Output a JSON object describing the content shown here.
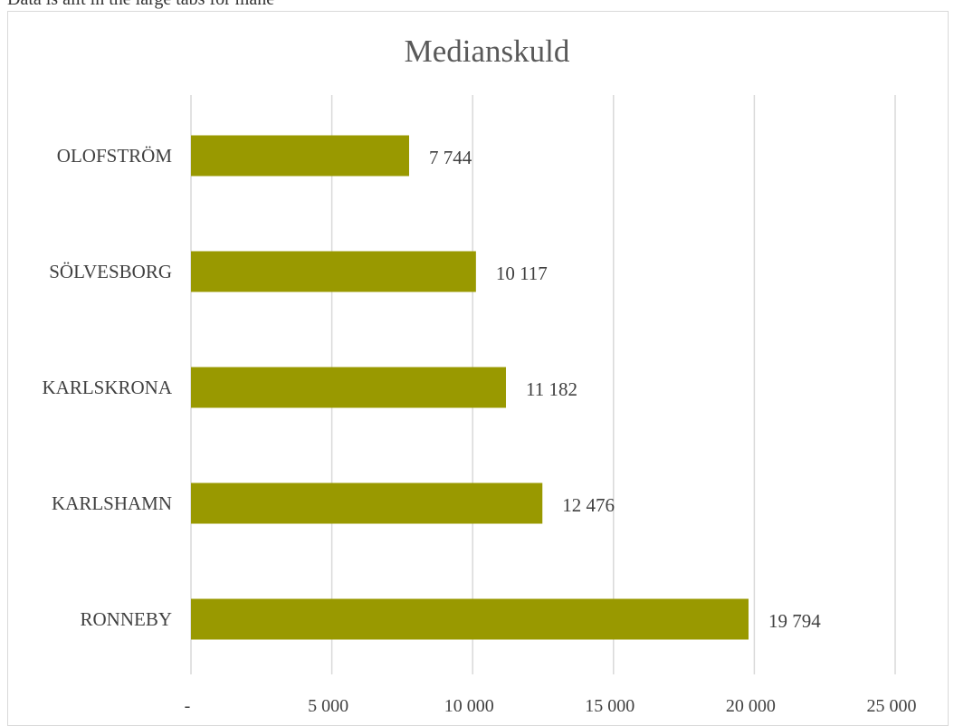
{
  "header_text": "Data is allt in the large tabs for mane",
  "chart_data": {
    "type": "bar",
    "orientation": "horizontal",
    "title": "Medianskuld",
    "categories": [
      "OLOFSTRÖM",
      "SÖLVESBORG",
      "KARLSKRONA",
      "KARLSHAMN",
      "RONNEBY"
    ],
    "values": [
      7744,
      10117,
      11182,
      12476,
      19794
    ],
    "value_labels": [
      "7 744",
      "10 117",
      "11 182",
      "12 476",
      "19 794"
    ],
    "xlim": [
      0,
      25000
    ],
    "x_ticks": [
      0,
      5000,
      10000,
      15000,
      20000,
      25000
    ],
    "x_tick_labels": [
      "-",
      "5 000",
      "10 000",
      "15 000",
      "20 000",
      "25 000"
    ],
    "xlabel": "",
    "ylabel": "",
    "grid": "vertical",
    "legend": "none",
    "bar_color": "#999900",
    "gridline_color": "#d9d9d9"
  }
}
